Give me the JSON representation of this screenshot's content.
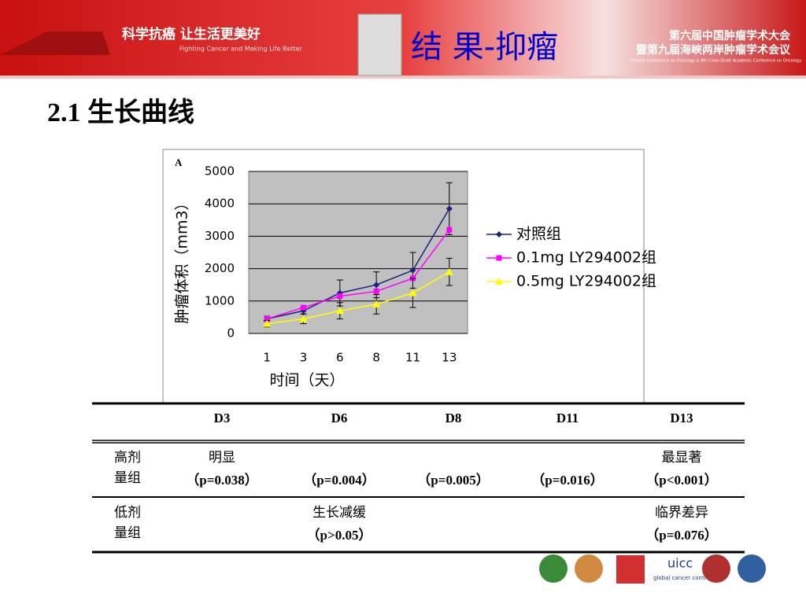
{
  "header": {
    "slogan": "科学抗癌  让生活更美好",
    "slogan_en": "Fighting Cancer and Making Life Better",
    "section": "结 果-抑瘤",
    "conference": "第六届中国肿瘤学术大会",
    "conference2": "暨第九届海峡两岸肿瘤学术会议",
    "conference_en": "Chinese Conference on Oncology & 9th Cross-Strait Academic Conference on Oncology"
  },
  "title": "2.1 生长曲线",
  "chart_data": {
    "type": "line",
    "panel": "A",
    "xlabel": "时间（天）",
    "ylabel": "肿瘤体积（mm3）",
    "categories": [
      "1",
      "3",
      "6",
      "8",
      "11",
      "13"
    ],
    "ylim": [
      0,
      5000
    ],
    "yticks": [
      0,
      1000,
      2000,
      3000,
      4000,
      5000
    ],
    "grid": true,
    "series": [
      {
        "name": "对照组",
        "color": "#1a237e",
        "marker": "diamond",
        "values": [
          450,
          700,
          1250,
          1500,
          1950,
          3850
        ],
        "errors": [
          80,
          100,
          400,
          400,
          550,
          800
        ]
      },
      {
        "name": "0.1mg LY294002组",
        "color": "#ff00ff",
        "marker": "square",
        "values": [
          450,
          800,
          1150,
          1300,
          1700,
          3200
        ]
      },
      {
        "name": "0.5mg LY294002组",
        "color": "#ffff00",
        "marker": "triangle",
        "values": [
          300,
          450,
          700,
          900,
          1250,
          1900
        ],
        "errors": [
          100,
          150,
          250,
          300,
          450,
          420
        ]
      }
    ]
  },
  "table": {
    "header": [
      "D3",
      "D6",
      "D8",
      "D11",
      "D13"
    ],
    "rows": [
      {
        "label": "高剂量组",
        "cells": [
          [
            "明显",
            "（p=0.038）"
          ],
          [
            "（p=0.004）"
          ],
          [
            "（p=0.005）"
          ],
          [
            "（p=0.016）"
          ],
          [
            "最显著",
            "（p<0.001）"
          ]
        ]
      },
      {
        "label": "低剂量组",
        "cells": [
          [],
          [
            "生长减缓",
            "（p>0.05）"
          ],
          [],
          [],
          [
            "临界差异",
            "（p=0.076）"
          ]
        ]
      }
    ]
  },
  "footer": {
    "logo": "uicc",
    "logo_sub": "global cancer control"
  }
}
